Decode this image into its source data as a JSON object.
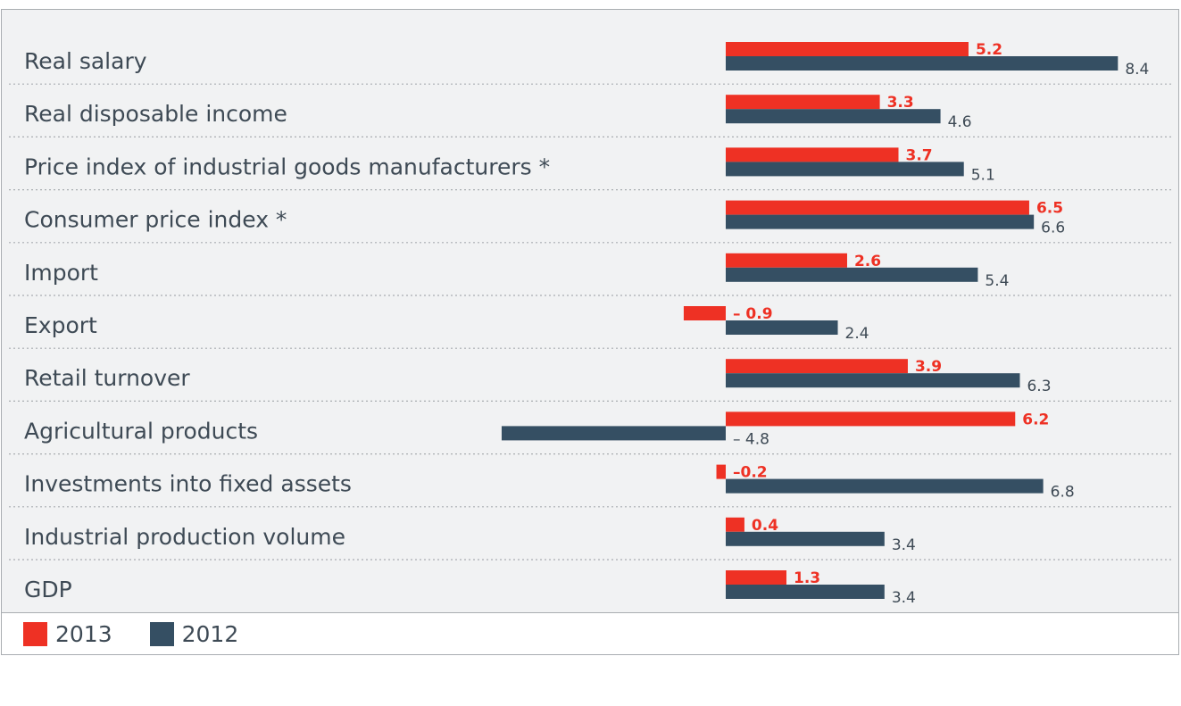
{
  "chart_data": {
    "type": "bar",
    "orientation": "horizontal",
    "grid": false,
    "legend_position": "bottom-left",
    "categories": [
      "Real salary",
      "Real disposable income",
      "Price index of industrial goods manufacturers *",
      "Consumer price index *",
      "Import",
      "Export",
      "Retail turnover",
      "Agricultural products",
      "Investments into fixed assets",
      "Industrial production volume",
      "GDP"
    ],
    "series": [
      {
        "name": "2013",
        "color": "#ee3124",
        "values": [
          5.2,
          3.3,
          3.7,
          6.5,
          2.6,
          -0.9,
          3.9,
          6.2,
          -0.2,
          0.4,
          1.3
        ],
        "value_labels": [
          "5.2",
          "3.3",
          "3.7",
          "6.5",
          "2.6",
          "– 0.9",
          "3.9",
          "6.2",
          "–0.2",
          "0.4",
          "1.3"
        ]
      },
      {
        "name": "2012",
        "color": "#354f63",
        "values": [
          8.4,
          4.6,
          5.1,
          6.6,
          5.4,
          2.4,
          6.3,
          -4.8,
          6.8,
          3.4,
          3.4
        ],
        "value_labels": [
          "8.4",
          "4.6",
          "5.1",
          "6.6",
          "5.4",
          "2.4",
          "6.3",
          "– 4.8",
          "6.8",
          "3.4",
          "3.4"
        ]
      }
    ],
    "xlim": [
      -5,
      9
    ]
  },
  "legend": {
    "items": [
      {
        "label": "2013",
        "color": "#ee3124"
      },
      {
        "label": "2012",
        "color": "#354f63"
      }
    ]
  }
}
